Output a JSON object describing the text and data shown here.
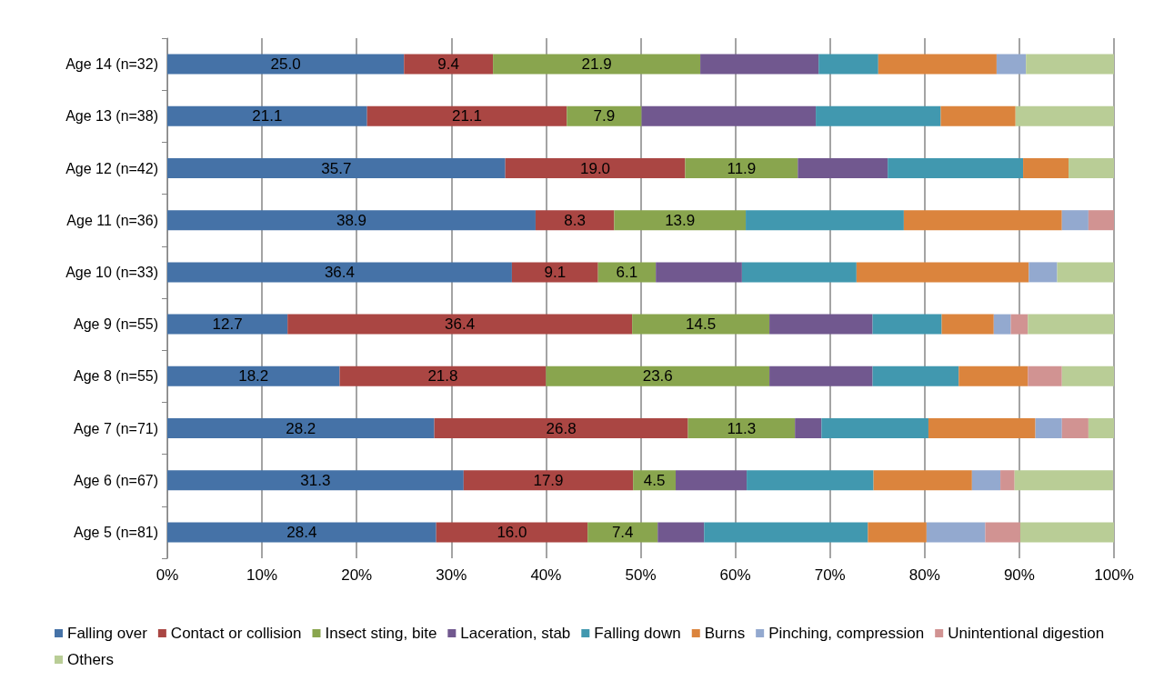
{
  "chart_data": {
    "type": "bar",
    "orientation": "horizontal",
    "stacked": true,
    "categories": [
      "Age 14 (n=32)",
      "Age 13 (n=38)",
      "Age 12 (n=42)",
      "Age 11 (n=36)",
      "Age 10 (n=33)",
      "Age 9 (n=55)",
      "Age 8 (n=55)",
      "Age 7 (n=71)",
      "Age 6 (n=67)",
      "Age 5 (n=81)"
    ],
    "series": [
      {
        "name": "Falling over",
        "color": "#4572a7",
        "values": [
          25.0,
          21.1,
          35.7,
          38.9,
          36.4,
          12.7,
          18.2,
          28.2,
          31.3,
          28.4
        ],
        "value_labels": [
          "25.0",
          "21.1",
          "35.7",
          "38.9",
          "36.4",
          "12.7",
          "18.2",
          "28.2",
          "31.3",
          "28.4"
        ]
      },
      {
        "name": "Contact or collision",
        "color": "#aa4643",
        "values": [
          9.4,
          21.1,
          19.0,
          8.3,
          9.1,
          36.4,
          21.8,
          26.8,
          17.9,
          16.0
        ],
        "value_labels": [
          "9.4",
          "21.1",
          "19.0",
          "8.3",
          "9.1",
          "36.4",
          "21.8",
          "26.8",
          "17.9",
          "16.0"
        ]
      },
      {
        "name": "Insect sting, bite",
        "color": "#89a54e",
        "values": [
          21.9,
          7.9,
          11.9,
          13.9,
          6.1,
          14.5,
          23.6,
          11.3,
          4.5,
          7.4
        ],
        "value_labels": [
          "21.9",
          "7.9",
          "11.9",
          "13.9",
          "6.1",
          "14.5",
          "23.6",
          "11.3",
          "4.5",
          "7.4"
        ]
      },
      {
        "name": "Laceration, stab",
        "color": "#71588f",
        "values": [
          12.5,
          18.4,
          9.5,
          0,
          9.1,
          10.9,
          10.9,
          2.8,
          7.5,
          4.9
        ]
      },
      {
        "name": "Falling down",
        "color": "#4198af",
        "values": [
          6.3,
          13.2,
          14.3,
          16.7,
          12.1,
          7.3,
          9.1,
          11.3,
          13.4,
          17.3
        ]
      },
      {
        "name": "Burns",
        "color": "#db843d",
        "values": [
          12.5,
          7.9,
          4.8,
          16.7,
          18.2,
          5.5,
          7.3,
          11.3,
          10.4,
          6.2
        ]
      },
      {
        "name": "Pinching, compression",
        "color": "#93a9cf",
        "values": [
          3.1,
          0,
          0,
          2.8,
          3.0,
          1.8,
          0,
          2.8,
          3.0,
          6.2
        ]
      },
      {
        "name": "Unintentional digestion",
        "color": "#d19392",
        "values": [
          0,
          0,
          0,
          2.8,
          0,
          1.8,
          3.6,
          2.8,
          1.5,
          3.7
        ]
      },
      {
        "name": "Others",
        "color": "#b9cd96",
        "values": [
          9.4,
          10.5,
          4.8,
          0,
          6.1,
          9.1,
          5.5,
          2.8,
          10.4,
          9.9
        ]
      }
    ],
    "xlim": [
      0,
      100
    ],
    "xticks": [
      {
        "value": 0,
        "label": "0%"
      },
      {
        "value": 10,
        "label": "10%"
      },
      {
        "value": 20,
        "label": "20%"
      },
      {
        "value": 30,
        "label": "30%"
      },
      {
        "value": 40,
        "label": "40%"
      },
      {
        "value": 50,
        "label": "50%"
      },
      {
        "value": 60,
        "label": "60%"
      },
      {
        "value": 70,
        "label": "70%"
      },
      {
        "value": 80,
        "label": "80%"
      },
      {
        "value": 90,
        "label": "90%"
      },
      {
        "value": 100,
        "label": "100%"
      }
    ],
    "grid": "x",
    "legend": "bottom"
  }
}
